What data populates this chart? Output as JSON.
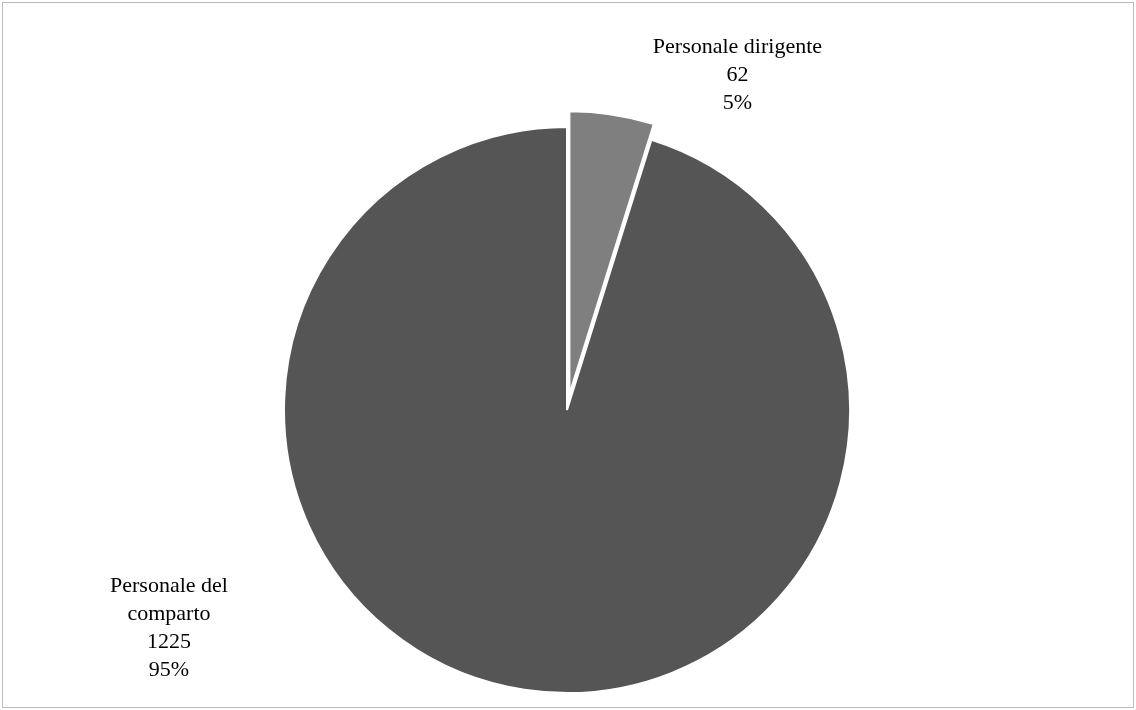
{
  "chart_data": {
    "type": "pie",
    "categories": [
      "Personale dirigente",
      "Personale del comparto"
    ],
    "values": [
      62,
      1225
    ],
    "colors": [
      "#7f7f7f",
      "#555555"
    ],
    "value_labels": [
      "62\n5%",
      "1225\n95%"
    ]
  }
}
